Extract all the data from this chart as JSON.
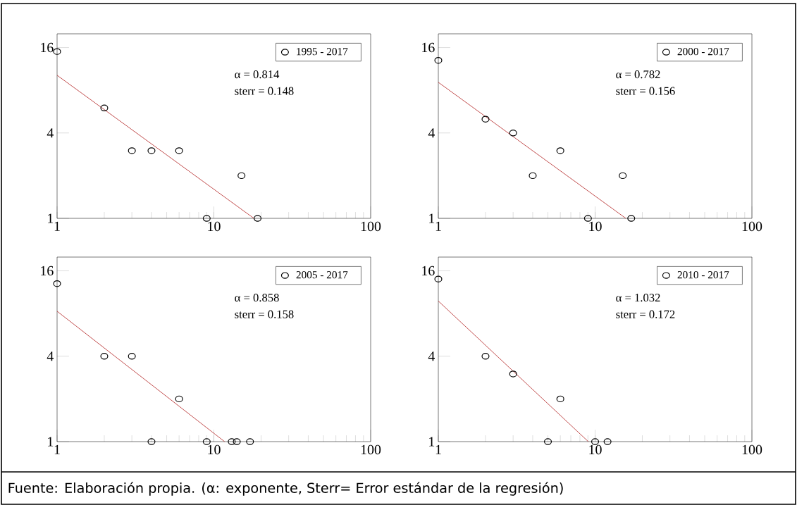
{
  "chart_data": [
    {
      "type": "scatter",
      "log": "xy",
      "xlim": [
        1,
        100
      ],
      "ylim": [
        1,
        20
      ],
      "xticks": [
        1,
        10,
        100
      ],
      "yticks": [
        1,
        4,
        16
      ],
      "legend": "top right",
      "series": [
        {
          "name": "1995 - 2017",
          "color": "#000000",
          "marker": "circle",
          "x": [
            1,
            2,
            3,
            4,
            6,
            9,
            15,
            19
          ],
          "values": [
            15,
            6,
            3,
            3,
            3,
            1,
            2,
            1
          ]
        },
        {
          "type": "line",
          "color": "#b22222",
          "marker": "none",
          "x": [
            1,
            18
          ],
          "values": [
            10.2,
            1
          ]
        }
      ],
      "annotations": [
        "α = 0.814",
        "sterr = 0.148"
      ]
    },
    {
      "type": "scatter",
      "log": "xy",
      "xlim": [
        1,
        100
      ],
      "ylim": [
        1,
        20
      ],
      "xticks": [
        1,
        10,
        100
      ],
      "yticks": [
        1,
        4,
        16
      ],
      "legend": "top right",
      "series": [
        {
          "name": "2000 - 2017",
          "color": "#000000",
          "marker": "circle",
          "x": [
            1,
            2,
            3,
            4,
            6,
            9,
            15,
            17
          ],
          "values": [
            13,
            5,
            4,
            2,
            3,
            1,
            2,
            1
          ]
        },
        {
          "type": "line",
          "color": "#b22222",
          "marker": "none",
          "x": [
            1,
            15.7
          ],
          "values": [
            9.1,
            1
          ]
        }
      ],
      "annotations": [
        "α = 0.782",
        "sterr = 0.156"
      ]
    },
    {
      "type": "scatter",
      "log": "xy",
      "xlim": [
        1,
        100
      ],
      "ylim": [
        1,
        20
      ],
      "xticks": [
        1,
        10,
        100
      ],
      "yticks": [
        1,
        4,
        16
      ],
      "legend": "top right",
      "series": [
        {
          "name": "2005 - 2017",
          "color": "#000000",
          "marker": "circle",
          "x": [
            1,
            2,
            3,
            4,
            6,
            9,
            13,
            14,
            17
          ],
          "values": [
            13,
            4,
            4,
            1,
            2,
            1,
            1,
            1,
            1
          ]
        },
        {
          "type": "line",
          "color": "#b22222",
          "marker": "none",
          "x": [
            1,
            11.7
          ],
          "values": [
            8.3,
            1
          ]
        }
      ],
      "annotations": [
        "α = 0.858",
        "sterr = 0.158",
        "Fuente: Elaboración propia. (α: exponente, Sterr= Error estándar de la regresión)"
      ]
    },
    {
      "type": "scatter",
      "log": "xy",
      "xlim": [
        1,
        100
      ],
      "ylim": [
        1,
        20
      ],
      "xticks": [
        1,
        10,
        100
      ],
      "yticks": [
        1,
        4,
        16
      ],
      "legend": "top right",
      "series": [
        {
          "name": "2010 - 2017",
          "color": "#000000",
          "marker": "circle",
          "x": [
            1,
            2,
            3,
            5,
            6,
            10,
            12
          ],
          "values": [
            14,
            4,
            3,
            1,
            2,
            1,
            1
          ]
        },
        {
          "type": "line",
          "color": "#b22222",
          "marker": "none",
          "x": [
            1,
            9.05
          ],
          "values": [
            9.8,
            1
          ]
        }
      ],
      "annotations": [
        "α = 1.032",
        "sterr = 0.172"
      ]
    }
  ]
}
